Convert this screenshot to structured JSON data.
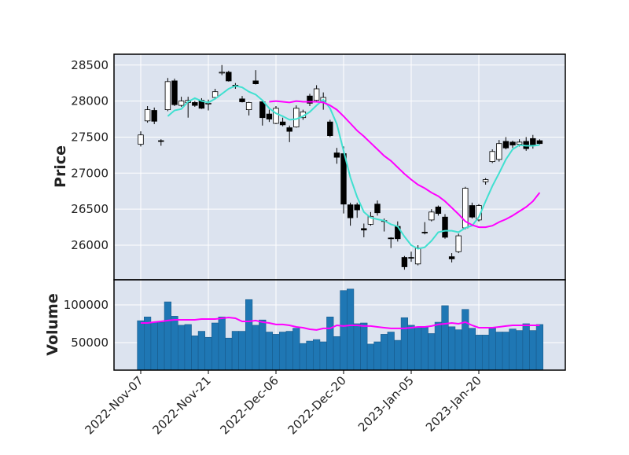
{
  "chart_data": {
    "type": "candlestick",
    "categories": [
      "2022-Nov-07",
      null,
      null,
      null,
      null,
      null,
      null,
      null,
      null,
      null,
      "2022-Nov-21",
      null,
      null,
      null,
      null,
      null,
      null,
      null,
      null,
      null,
      "2022-Dec-06",
      null,
      null,
      null,
      null,
      null,
      null,
      null,
      null,
      null,
      "2022-Dec-20",
      null,
      null,
      null,
      null,
      null,
      null,
      null,
      null,
      null,
      "2023-Jan-05",
      null,
      null,
      null,
      null,
      null,
      null,
      null,
      null,
      null,
      "2023-Jan-20",
      null,
      null,
      null,
      null,
      null,
      null,
      null,
      null,
      null
    ],
    "open": [
      27400,
      27725,
      27870,
      27450,
      27880,
      28280,
      27940,
      27980,
      27980,
      28010,
      27960,
      28050,
      28390,
      28400,
      28220,
      28030,
      27880,
      28280,
      27990,
      27820,
      27690,
      27710,
      27630,
      27640,
      27770,
      28070,
      28010,
      27990,
      27710,
      27280,
      27270,
      26560,
      26560,
      26230,
      26290,
      26570,
      26330,
      26100,
      26260,
      25830,
      25830,
      25740,
      26180,
      26350,
      26530,
      26390,
      25840,
      25910,
      26240,
      26550,
      26350,
      26880,
      27160,
      27190,
      27440,
      27430,
      27400,
      27440,
      27480,
      27450
    ],
    "high": [
      27580,
      27930,
      27910,
      27470,
      28320,
      28310,
      28060,
      28060,
      28000,
      28040,
      28020,
      28170,
      28500,
      28420,
      28250,
      28070,
      27990,
      28430,
      28010,
      27880,
      27930,
      27770,
      27660,
      27940,
      27880,
      28100,
      28220,
      28120,
      27740,
      27350,
      27370,
      26590,
      26590,
      26300,
      26460,
      26620,
      26370,
      26110,
      26330,
      25850,
      25910,
      26000,
      26320,
      26500,
      26550,
      26430,
      25890,
      26160,
      26810,
      26590,
      26570,
      26930,
      27330,
      27460,
      27500,
      27450,
      27470,
      27500,
      27530,
      27470
    ],
    "low": [
      27370,
      27700,
      27680,
      27380,
      27860,
      27930,
      27920,
      27770,
      27920,
      27890,
      27870,
      28040,
      28360,
      28270,
      28170,
      27980,
      27800,
      28230,
      27660,
      27710,
      27680,
      27650,
      27430,
      27630,
      27740,
      27930,
      27980,
      27880,
      27500,
      27130,
      26440,
      26270,
      26380,
      26110,
      26270,
      26410,
      26190,
      25960,
      26050,
      25660,
      25770,
      25720,
      26150,
      26330,
      26410,
      26090,
      25760,
      25890,
      26220,
      26370,
      26330,
      26840,
      27140,
      27160,
      27330,
      27350,
      27370,
      27310,
      27340,
      27400
    ],
    "close": [
      27530,
      27880,
      27720,
      27440,
      28270,
      27950,
      28000,
      28010,
      27940,
      27900,
      27970,
      28130,
      28400,
      28280,
      28200,
      27990,
      27980,
      28240,
      27770,
      27750,
      27900,
      27670,
      27580,
      27900,
      27850,
      27970,
      28170,
      28050,
      27520,
      27220,
      26570,
      26380,
      26490,
      26210,
      26400,
      26450,
      26340,
      26090,
      26090,
      25700,
      25820,
      25960,
      26170,
      26460,
      26440,
      26110,
      25810,
      26130,
      26790,
      26390,
      26550,
      26910,
      27300,
      27410,
      27350,
      27390,
      27430,
      27340,
      27380,
      27410
    ],
    "up_color": "#ffffff",
    "down_color": "#000000",
    "ylabel": "Price",
    "ylim": [
      25520,
      28650
    ],
    "yticks": [
      26000,
      26500,
      27000,
      27500,
      28000,
      28500
    ],
    "grid": true,
    "moving_averages": [
      {
        "color": "#40e0d0",
        "values": [
          null,
          null,
          null,
          null,
          27790,
          27870,
          27890,
          27990,
          28040,
          28000,
          27980,
          28030,
          28100,
          28170,
          28210,
          28190,
          28130,
          28090,
          28010,
          27900,
          27830,
          27790,
          27740,
          27750,
          27790,
          27850,
          27940,
          28020,
          27900,
          27680,
          27310,
          26940,
          26670,
          26460,
          26380,
          26360,
          26340,
          26290,
          26260,
          26120,
          26000,
          25950,
          25970,
          26060,
          26180,
          26200,
          26200,
          26180,
          26240,
          26270,
          26390,
          26610,
          26820,
          27000,
          27190,
          27330,
          27390,
          27380,
          27380,
          27390
        ]
      },
      {
        "color": "#ff00ff",
        "values": [
          null,
          null,
          null,
          null,
          null,
          null,
          null,
          null,
          null,
          null,
          null,
          null,
          null,
          null,
          null,
          null,
          null,
          null,
          null,
          27990,
          28000,
          27990,
          27980,
          28000,
          27990,
          27990,
          27990,
          27980,
          27940,
          27880,
          27790,
          27690,
          27590,
          27510,
          27420,
          27330,
          27240,
          27170,
          27080,
          26990,
          26910,
          26840,
          26790,
          26730,
          26680,
          26610,
          26520,
          26430,
          26330,
          26280,
          26250,
          26250,
          26270,
          26320,
          26360,
          26410,
          26470,
          26530,
          26610,
          26730
        ]
      }
    ],
    "volume": {
      "ylabel": "Volume",
      "color": "#1f77b4",
      "ylim": [
        13500,
        133300
      ],
      "yticks": [
        50000,
        100000
      ],
      "values": [
        79000,
        84000,
        77000,
        77000,
        104000,
        85000,
        73000,
        74000,
        59000,
        65000,
        57000,
        76000,
        84000,
        56000,
        65000,
        65000,
        107000,
        73000,
        80000,
        64000,
        61000,
        64000,
        65000,
        69000,
        49000,
        52000,
        54000,
        51000,
        84000,
        58000,
        119000,
        121000,
        75000,
        76000,
        48000,
        51000,
        61000,
        64000,
        53000,
        83000,
        73000,
        71000,
        71000,
        62000,
        77000,
        99000,
        71000,
        67000,
        94000,
        69000,
        60000,
        60000,
        69000,
        64000,
        64000,
        68000,
        66000,
        75000,
        66000,
        74000
      ],
      "moving_average": {
        "color": "#ff00ff",
        "values": [
          76000,
          76000,
          77100,
          78100,
          79200,
          80200,
          80200,
          80200,
          80200,
          81200,
          81200,
          81200,
          82300,
          83300,
          82300,
          78100,
          78100,
          79200,
          77100,
          76000,
          74000,
          74000,
          72900,
          70800,
          69800,
          67700,
          66700,
          68800,
          68800,
          72900,
          71900,
          72900,
          72900,
          71900,
          71900,
          70800,
          69800,
          68800,
          68800,
          68800,
          69800,
          70800,
          70800,
          71900,
          74000,
          75000,
          76000,
          75000,
          77100,
          72900,
          69800,
          69800,
          69800,
          70800,
          71900,
          72900,
          72900,
          72900,
          72900,
          72900
        ]
      }
    }
  }
}
